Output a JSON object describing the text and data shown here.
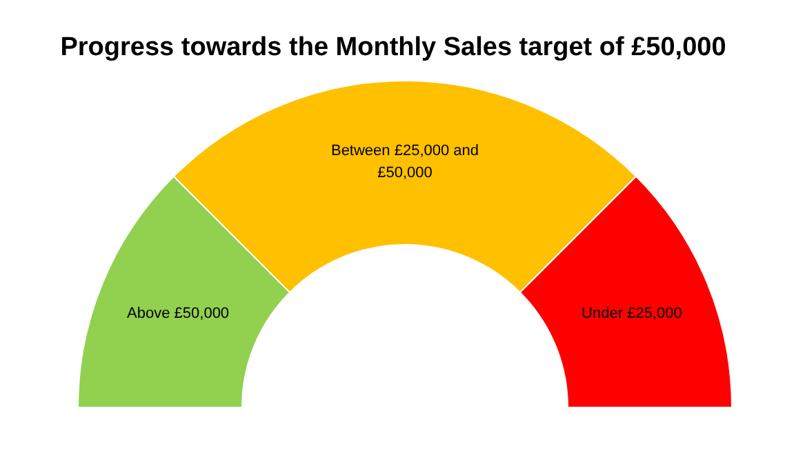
{
  "chart_data": {
    "type": "donut",
    "title": "Progress towards the Monthly Sales target of £50,000",
    "categories": [
      "Above £50,000",
      "Between £25,000 and £50,000",
      "Under £25,000"
    ],
    "values": [
      25,
      50,
      25
    ],
    "colors": [
      "#92d050",
      "#ffc000",
      "#ff0000"
    ]
  }
}
